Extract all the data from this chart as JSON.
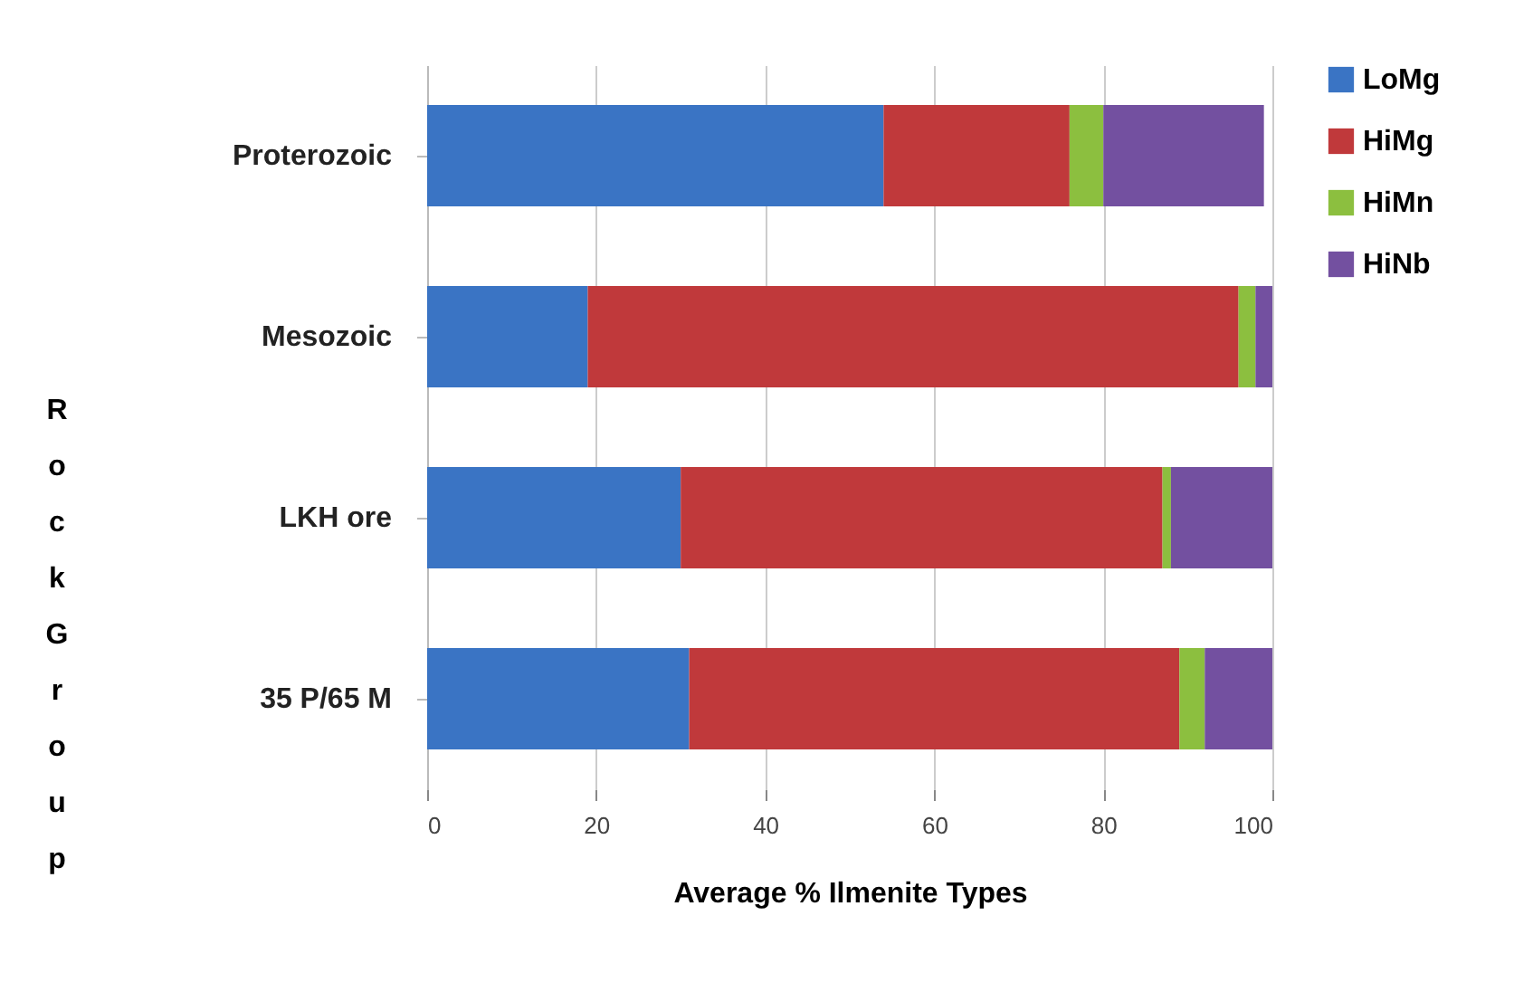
{
  "chart_data": {
    "type": "bar",
    "orientation": "horizontal",
    "stacked": true,
    "categories": [
      "Proterozoic",
      "Mesozoic",
      "LKH ore",
      "35 P/65 M"
    ],
    "series": [
      {
        "name": "LoMg",
        "color": "#3a74c4",
        "values": [
          54,
          19,
          30,
          31
        ]
      },
      {
        "name": "HiMg",
        "color": "#c0393b",
        "values": [
          22,
          77,
          57,
          58
        ]
      },
      {
        "name": "HiMn",
        "color": "#8cbf3f",
        "values": [
          4,
          2,
          1,
          3
        ]
      },
      {
        "name": "HiNb",
        "color": "#7350a0",
        "values": [
          19,
          2,
          12,
          8
        ]
      }
    ],
    "xlabel": "Average % Ilmenite Types",
    "ylabel": "Rock Group",
    "xlim": [
      0,
      100
    ],
    "xticks": [
      0,
      20,
      40,
      60,
      80,
      100
    ],
    "grid": "x",
    "legend": "right"
  }
}
